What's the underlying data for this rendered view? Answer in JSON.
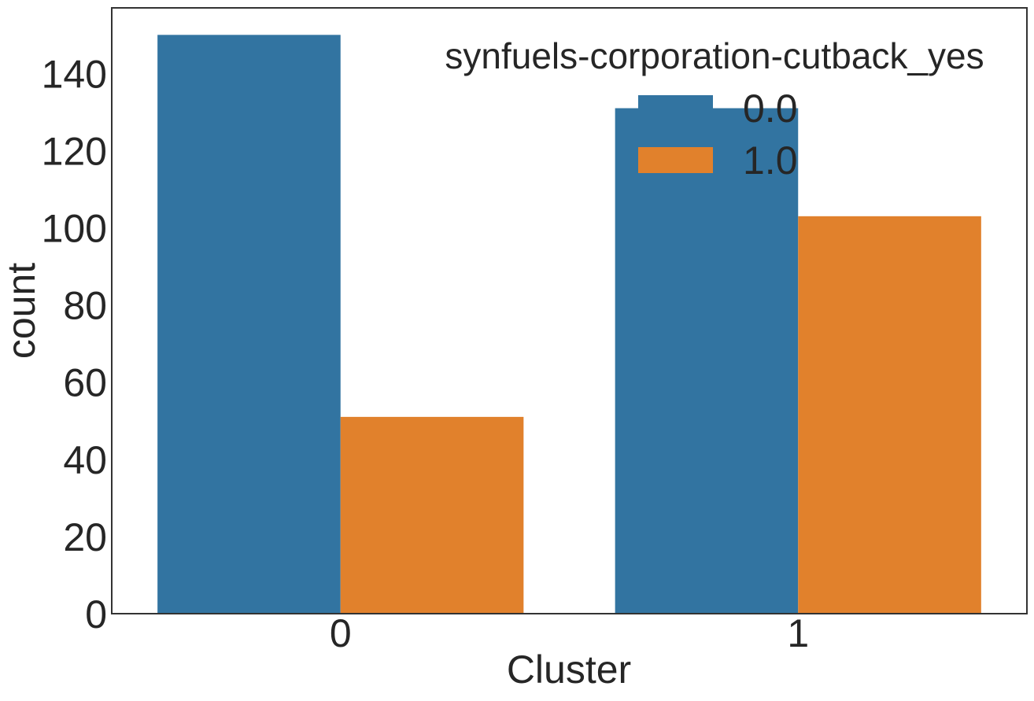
{
  "chart_data": {
    "type": "bar",
    "xlabel": "Cluster",
    "ylabel": "count",
    "categories": [
      "0",
      "1"
    ],
    "ylim": [
      0,
      157
    ],
    "yticks": [
      0,
      20,
      40,
      60,
      80,
      100,
      120,
      140
    ],
    "grid": false,
    "legend": {
      "title": "synfuels-corporation-cutback_yes",
      "placement": "top-right"
    },
    "series": [
      {
        "name": "0.0",
        "color": "#3274a1",
        "values": [
          150,
          131
        ]
      },
      {
        "name": "1.0",
        "color": "#e1812c",
        "values": [
          51,
          103
        ]
      }
    ]
  }
}
